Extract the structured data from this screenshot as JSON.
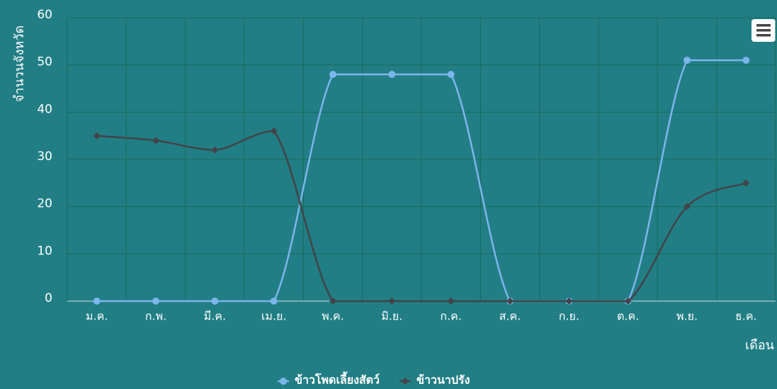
{
  "chart_data": {
    "type": "line",
    "ylabel": "จำนวนจังหวัด",
    "xlabel": "เดือน",
    "categories": [
      "ม.ค.",
      "ก.พ.",
      "มี.ค.",
      "เม.ย.",
      "พ.ค.",
      "มิ.ย.",
      "ก.ค.",
      "ส.ค.",
      "ก.ย.",
      "ต.ค.",
      "พ.ย.",
      "ธ.ค."
    ],
    "series": [
      {
        "name": "ข้าวโพดเลี้ยงสัตว์",
        "color": "#7cb5ec",
        "marker": "circle",
        "values": [
          0,
          0,
          0,
          0,
          48,
          48,
          48,
          0,
          0,
          0,
          51,
          51
        ]
      },
      {
        "name": "ข้าวนาปรัง",
        "color": "#434348",
        "marker": "diamond",
        "values": [
          35,
          34,
          32,
          36,
          0,
          0,
          0,
          0,
          0,
          0,
          20,
          25
        ]
      }
    ],
    "ylim": [
      0,
      60
    ],
    "yticks": [
      0,
      10,
      20,
      30,
      40,
      50,
      60
    ],
    "grid": true,
    "legend": "bottom"
  }
}
